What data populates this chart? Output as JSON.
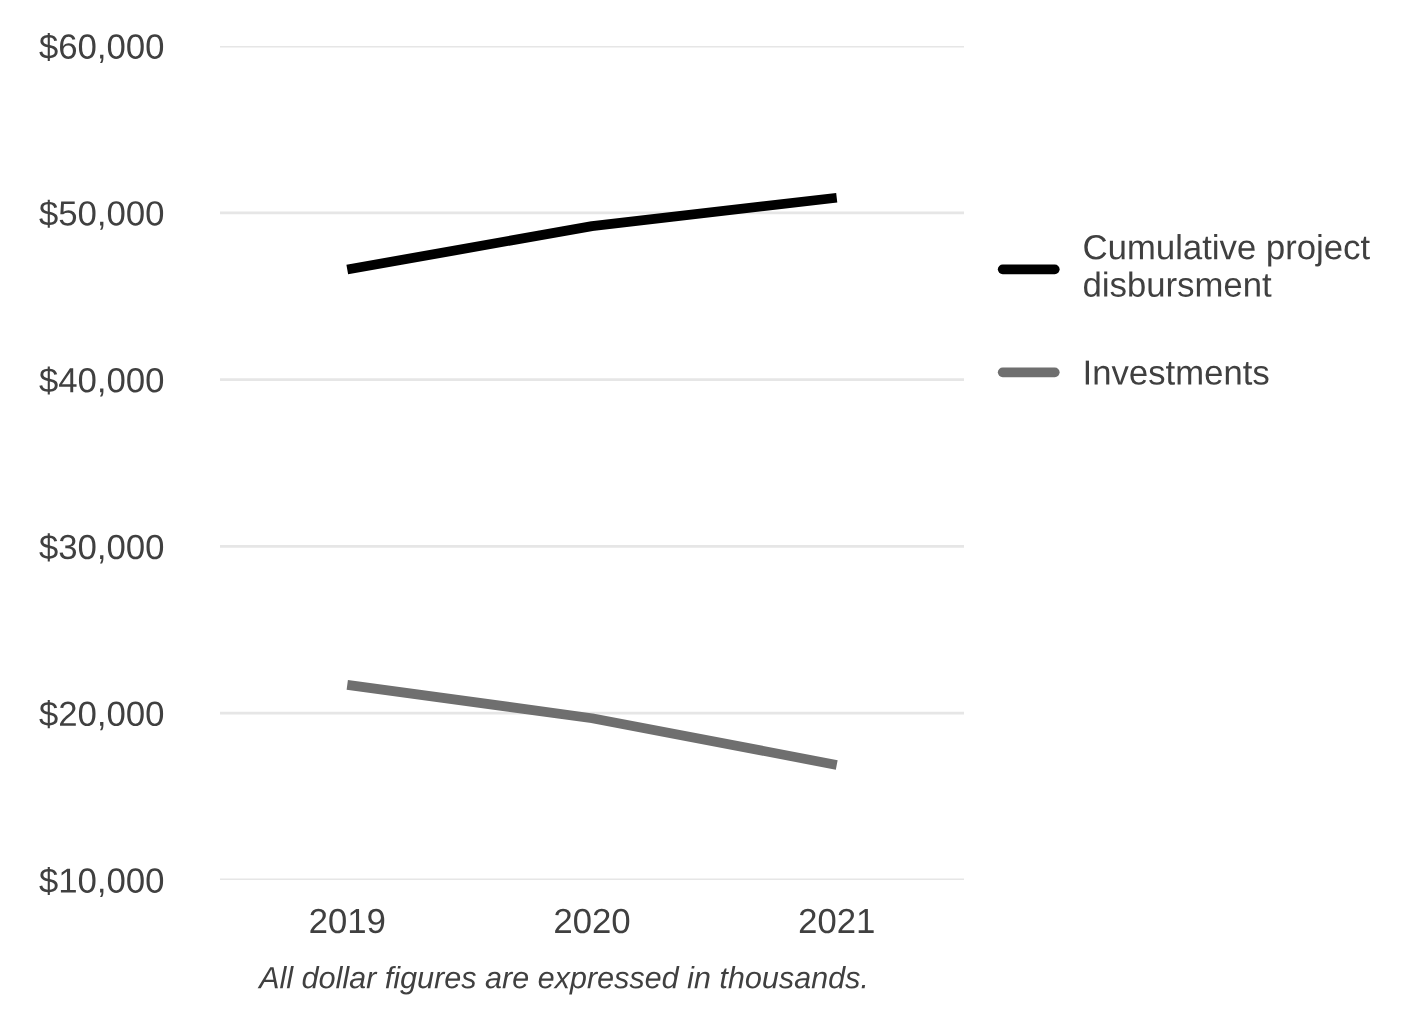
{
  "chart_data": {
    "type": "line",
    "categories": [
      "2019",
      "2020",
      "2021"
    ],
    "series": [
      {
        "name": "Cumulative project disbursment",
        "color": "#000000",
        "values": [
          46600,
          49200,
          50900
        ]
      },
      {
        "name": "Investments",
        "color": "#6f6f6f",
        "values": [
          21700,
          19700,
          16900
        ]
      }
    ],
    "ylim": [
      10000,
      60000
    ],
    "yticks": [
      {
        "value": 10000,
        "label": "$10,000"
      },
      {
        "value": 20000,
        "label": "$20,000"
      },
      {
        "value": 30000,
        "label": "$30,000"
      },
      {
        "value": 40000,
        "label": "$40,000"
      },
      {
        "value": 50000,
        "label": "$50,000"
      },
      {
        "value": 60000,
        "label": "$60,000"
      }
    ],
    "grid": "y",
    "legend": "right",
    "marker": "none",
    "line_style": "solid",
    "annotations": [
      "All dollar figures are expressed in thousands."
    ]
  }
}
